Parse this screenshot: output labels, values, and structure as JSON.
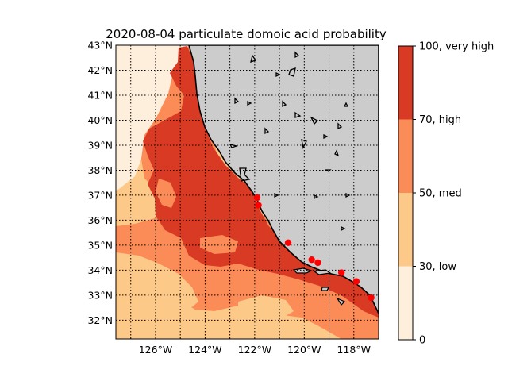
{
  "title": "2020-08-04 particulate domoic acid probability",
  "colors": {
    "very_high": "#d93a24",
    "high": "#fb8c58",
    "med": "#fdc988",
    "low": "#feefdd",
    "land": "#cccccc",
    "coast": "#000000",
    "station": "#ff0000"
  },
  "lat_ticks": [
    "32°N",
    "33°N",
    "34°N",
    "35°N",
    "36°N",
    "37°N",
    "38°N",
    "39°N",
    "40°N",
    "41°N",
    "42°N",
    "43°N"
  ],
  "lon_ticks": [
    "126°W",
    "124°W",
    "122°W",
    "120°W",
    "118°W"
  ],
  "colorbar": {
    "labels": [
      "100, very high",
      "70, high",
      "50, med",
      "30, low",
      "0"
    ]
  },
  "stations": [
    {
      "lon": -121.9,
      "lat": 36.9
    },
    {
      "lon": -121.85,
      "lat": 36.6
    },
    {
      "lon": -120.65,
      "lat": 35.1
    },
    {
      "lon": -119.7,
      "lat": 34.42
    },
    {
      "lon": -119.45,
      "lat": 34.3
    },
    {
      "lon": -118.5,
      "lat": 33.9
    },
    {
      "lon": -117.9,
      "lat": 33.55
    },
    {
      "lon": -117.3,
      "lat": 32.9
    }
  ]
}
